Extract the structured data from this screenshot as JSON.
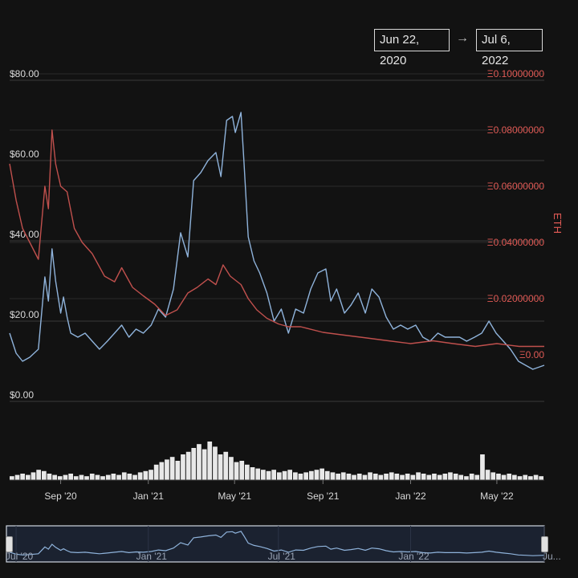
{
  "date_range": {
    "from": "Jun 22, 2020",
    "arrow": "→",
    "to": "Jul 6, 2022"
  },
  "colors": {
    "usd": "#8fb3db",
    "eth": "#c0504d",
    "bg": "#121212",
    "grid": "#3a3a3a",
    "text": "#d9d9d9",
    "eth_text": "#e05a55"
  },
  "chart_data": {
    "type": "line",
    "x_range": [
      "2020-06-22",
      "2022-07-06"
    ],
    "left_axis": {
      "ticks": [
        "$80.00",
        "$60.00",
        "$40.00",
        "$20.00",
        "$0.00"
      ],
      "tick_values": [
        80,
        60,
        40,
        20,
        0
      ],
      "range": [
        0,
        80
      ]
    },
    "right_axis": {
      "label": "ETH",
      "ticks": [
        "Ξ0.10000000",
        "Ξ0.08000000",
        "Ξ0.06000000",
        "Ξ0.04000000",
        "Ξ0.02000000",
        "Ξ0.00"
      ],
      "tick_values": [
        0.1,
        0.08,
        0.06,
        0.04,
        0.02,
        0.0
      ],
      "range": [
        0,
        0.1
      ]
    },
    "x_tick_labels": [
      {
        "label": "Sep '20",
        "date": "2020-09-01"
      },
      {
        "label": "Jan '21",
        "date": "2021-01-01"
      },
      {
        "label": "May '21",
        "date": "2021-05-01"
      },
      {
        "label": "Sep '21",
        "date": "2021-09-01"
      },
      {
        "label": "Jan '22",
        "date": "2022-01-01"
      },
      {
        "label": "May '22",
        "date": "2022-05-01"
      }
    ],
    "series": [
      {
        "axis": "usd",
        "points": [
          [
            "2020-06-22",
            17
          ],
          [
            "2020-07-01",
            12
          ],
          [
            "2020-07-10",
            10
          ],
          [
            "2020-07-20",
            11
          ],
          [
            "2020-08-01",
            13
          ],
          [
            "2020-08-10",
            31
          ],
          [
            "2020-08-15",
            25
          ],
          [
            "2020-08-20",
            38
          ],
          [
            "2020-08-25",
            30
          ],
          [
            "2020-09-01",
            22
          ],
          [
            "2020-09-05",
            26
          ],
          [
            "2020-09-10",
            21
          ],
          [
            "2020-09-15",
            17
          ],
          [
            "2020-09-25",
            16
          ],
          [
            "2020-10-05",
            17
          ],
          [
            "2020-10-15",
            15
          ],
          [
            "2020-10-25",
            13
          ],
          [
            "2020-11-05",
            15
          ],
          [
            "2020-11-15",
            17
          ],
          [
            "2020-11-25",
            19
          ],
          [
            "2020-12-05",
            16
          ],
          [
            "2020-12-15",
            18
          ],
          [
            "2020-12-25",
            17
          ],
          [
            "2021-01-05",
            19
          ],
          [
            "2021-01-15",
            23
          ],
          [
            "2021-01-25",
            21
          ],
          [
            "2021-02-05",
            28
          ],
          [
            "2021-02-15",
            42
          ],
          [
            "2021-02-25",
            36
          ],
          [
            "2021-03-05",
            55
          ],
          [
            "2021-03-15",
            57
          ],
          [
            "2021-03-25",
            60
          ],
          [
            "2021-04-05",
            62
          ],
          [
            "2021-04-12",
            56
          ],
          [
            "2021-04-20",
            70
          ],
          [
            "2021-04-28",
            71
          ],
          [
            "2021-05-02",
            67
          ],
          [
            "2021-05-10",
            72
          ],
          [
            "2021-05-14",
            60
          ],
          [
            "2021-05-20",
            41
          ],
          [
            "2021-05-28",
            35
          ],
          [
            "2021-06-05",
            32
          ],
          [
            "2021-06-15",
            27
          ],
          [
            "2021-06-25",
            20
          ],
          [
            "2021-07-05",
            23
          ],
          [
            "2021-07-15",
            17
          ],
          [
            "2021-07-25",
            23
          ],
          [
            "2021-08-05",
            22
          ],
          [
            "2021-08-15",
            28
          ],
          [
            "2021-08-25",
            32
          ],
          [
            "2021-09-05",
            33
          ],
          [
            "2021-09-12",
            25
          ],
          [
            "2021-09-20",
            28
          ],
          [
            "2021-10-01",
            22
          ],
          [
            "2021-10-10",
            24
          ],
          [
            "2021-10-20",
            27
          ],
          [
            "2021-10-30",
            22
          ],
          [
            "2021-11-08",
            28
          ],
          [
            "2021-11-18",
            26
          ],
          [
            "2021-11-28",
            21
          ],
          [
            "2021-12-08",
            18
          ],
          [
            "2021-12-18",
            19
          ],
          [
            "2021-12-28",
            18
          ],
          [
            "2022-01-08",
            19
          ],
          [
            "2022-01-18",
            16
          ],
          [
            "2022-01-28",
            15
          ],
          [
            "2022-02-08",
            17
          ],
          [
            "2022-02-18",
            16
          ],
          [
            "2022-02-28",
            16
          ],
          [
            "2022-03-10",
            16
          ],
          [
            "2022-03-20",
            15
          ],
          [
            "2022-03-31",
            16
          ],
          [
            "2022-04-10",
            17
          ],
          [
            "2022-04-20",
            20
          ],
          [
            "2022-04-30",
            17
          ],
          [
            "2022-05-10",
            15
          ],
          [
            "2022-05-20",
            13
          ],
          [
            "2022-05-31",
            10
          ],
          [
            "2022-06-10",
            9
          ],
          [
            "2022-06-20",
            8
          ],
          [
            "2022-07-06",
            9
          ]
        ]
      },
      {
        "axis": "eth",
        "points": [
          [
            "2020-06-22",
            0.068
          ],
          [
            "2020-07-01",
            0.055
          ],
          [
            "2020-07-10",
            0.045
          ],
          [
            "2020-07-20",
            0.04
          ],
          [
            "2020-08-01",
            0.034
          ],
          [
            "2020-08-10",
            0.06
          ],
          [
            "2020-08-15",
            0.052
          ],
          [
            "2020-08-20",
            0.08
          ],
          [
            "2020-08-25",
            0.068
          ],
          [
            "2020-09-01",
            0.06
          ],
          [
            "2020-09-10",
            0.058
          ],
          [
            "2020-09-20",
            0.045
          ],
          [
            "2020-10-01",
            0.04
          ],
          [
            "2020-10-15",
            0.036
          ],
          [
            "2020-11-01",
            0.028
          ],
          [
            "2020-11-15",
            0.026
          ],
          [
            "2020-11-25",
            0.031
          ],
          [
            "2020-12-10",
            0.024
          ],
          [
            "2020-12-25",
            0.021
          ],
          [
            "2021-01-10",
            0.018
          ],
          [
            "2021-01-25",
            0.014
          ],
          [
            "2021-02-10",
            0.016
          ],
          [
            "2021-02-25",
            0.022
          ],
          [
            "2021-03-10",
            0.024
          ],
          [
            "2021-03-25",
            0.027
          ],
          [
            "2021-04-05",
            0.025
          ],
          [
            "2021-04-15",
            0.032
          ],
          [
            "2021-04-25",
            0.028
          ],
          [
            "2021-05-10",
            0.025
          ],
          [
            "2021-05-20",
            0.02
          ],
          [
            "2021-06-01",
            0.016
          ],
          [
            "2021-06-15",
            0.013
          ],
          [
            "2021-07-01",
            0.011
          ],
          [
            "2021-07-15",
            0.01
          ],
          [
            "2021-08-01",
            0.01
          ],
          [
            "2021-09-01",
            0.008
          ],
          [
            "2021-10-01",
            0.007
          ],
          [
            "2021-11-01",
            0.006
          ],
          [
            "2021-12-01",
            0.005
          ],
          [
            "2022-01-01",
            0.004
          ],
          [
            "2022-02-01",
            0.005
          ],
          [
            "2022-03-01",
            0.004
          ],
          [
            "2022-04-01",
            0.003
          ],
          [
            "2022-05-01",
            0.004
          ],
          [
            "2022-06-01",
            0.003
          ],
          [
            "2022-07-06",
            0.003
          ]
        ]
      }
    ],
    "volume": [
      3,
      4,
      5,
      4,
      6,
      8,
      7,
      5,
      4,
      3,
      4,
      5,
      3,
      4,
      3,
      5,
      4,
      3,
      4,
      5,
      4,
      6,
      5,
      4,
      6,
      7,
      8,
      12,
      14,
      16,
      18,
      15,
      20,
      22,
      25,
      28,
      24,
      30,
      26,
      20,
      22,
      18,
      14,
      15,
      12,
      10,
      9,
      8,
      7,
      8,
      6,
      7,
      8,
      6,
      5,
      6,
      7,
      8,
      9,
      7,
      6,
      5,
      6,
      5,
      4,
      5,
      4,
      6,
      5,
      4,
      5,
      6,
      5,
      4,
      5,
      4,
      6,
      5,
      4,
      5,
      4,
      5,
      6,
      5,
      4,
      3,
      5,
      4,
      20,
      8,
      6,
      5,
      4,
      5,
      4,
      3,
      4,
      3,
      4,
      3
    ],
    "navigator_x_labels": [
      "Jul '20",
      "Jan '21",
      "Jul '21",
      "Jan '22",
      "Ju..."
    ]
  }
}
